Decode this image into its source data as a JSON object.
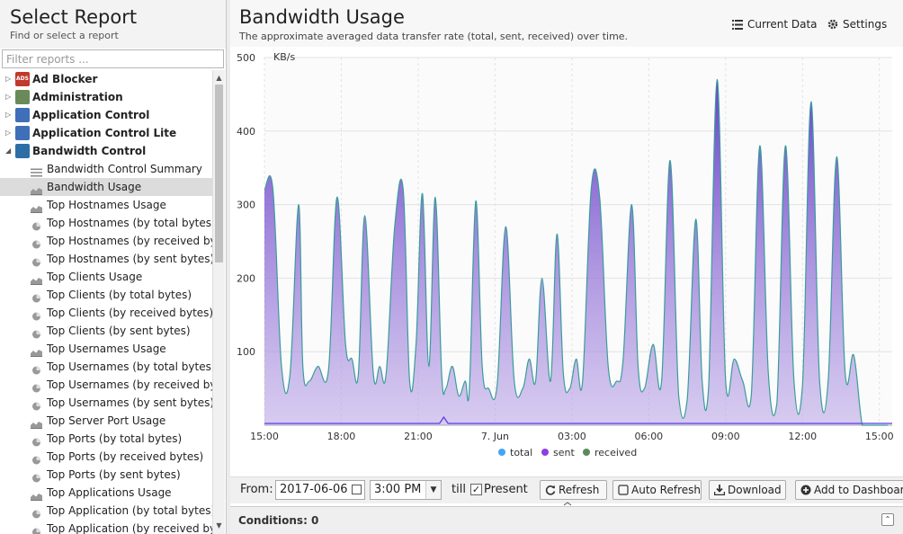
{
  "left_panel": {
    "title": "Select Report",
    "subtitle": "Find or select a report",
    "filter_placeholder": "Filter reports ..."
  },
  "tree": {
    "categories": [
      {
        "label": "Ad Blocker",
        "icon": "ad-blocker-icon",
        "icon_text": "ADS",
        "icon_color": "#c0392b",
        "expanded": false
      },
      {
        "label": "Administration",
        "icon": "administration-icon",
        "icon_text": "",
        "icon_color": "#6a8a5a",
        "expanded": false
      },
      {
        "label": "Application Control",
        "icon": "application-control-icon",
        "icon_text": "",
        "icon_color": "#3f6fb8",
        "expanded": false
      },
      {
        "label": "Application Control Lite",
        "icon": "application-control-lite-icon",
        "icon_text": "",
        "icon_color": "#3f6fb8",
        "expanded": false
      },
      {
        "label": "Bandwidth Control",
        "icon": "bandwidth-control-icon",
        "icon_text": "",
        "icon_color": "#2e6ea6",
        "expanded": true
      }
    ],
    "children": [
      {
        "label": "Bandwidth Control Summary",
        "icon": "text-report-icon"
      },
      {
        "label": "Bandwidth Usage",
        "icon": "area-chart-icon",
        "selected": true
      },
      {
        "label": "Top Hostnames Usage",
        "icon": "area-chart-icon"
      },
      {
        "label": "Top Hostnames (by total bytes)",
        "icon": "pie-chart-icon"
      },
      {
        "label": "Top Hostnames (by received byt...",
        "icon": "pie-chart-icon"
      },
      {
        "label": "Top Hostnames (by sent bytes)",
        "icon": "pie-chart-icon"
      },
      {
        "label": "Top Clients Usage",
        "icon": "area-chart-icon"
      },
      {
        "label": "Top Clients (by total bytes)",
        "icon": "pie-chart-icon"
      },
      {
        "label": "Top Clients (by received bytes)",
        "icon": "pie-chart-icon"
      },
      {
        "label": "Top Clients (by sent bytes)",
        "icon": "pie-chart-icon"
      },
      {
        "label": "Top Usernames Usage",
        "icon": "area-chart-icon"
      },
      {
        "label": "Top Usernames (by total bytes)",
        "icon": "pie-chart-icon"
      },
      {
        "label": "Top Usernames (by received bytes)",
        "icon": "pie-chart-icon"
      },
      {
        "label": "Top Usernames (by sent bytes)",
        "icon": "pie-chart-icon"
      },
      {
        "label": "Top Server Port Usage",
        "icon": "area-chart-icon"
      },
      {
        "label": "Top Ports (by total bytes)",
        "icon": "pie-chart-icon"
      },
      {
        "label": "Top Ports (by received bytes)",
        "icon": "pie-chart-icon"
      },
      {
        "label": "Top Ports (by sent bytes)",
        "icon": "pie-chart-icon"
      },
      {
        "label": "Top Applications Usage",
        "icon": "area-chart-icon"
      },
      {
        "label": "Top Application (by total bytes)",
        "icon": "pie-chart-icon"
      },
      {
        "label": "Top Application (by received bytes)",
        "icon": "pie-chart-icon"
      }
    ]
  },
  "report": {
    "title": "Bandwidth Usage",
    "subtitle": "The approximate averaged data transfer rate (total, sent, received) over time.",
    "current_data_label": "Current Data",
    "settings_label": "Settings"
  },
  "toolbar": {
    "from_label": "From:",
    "from_date": "2017-06-06",
    "from_time": "3:00 PM",
    "till_label": "till",
    "present_checked": true,
    "present_label": "Present",
    "refresh_label": "Refresh",
    "auto_refresh_label": "Auto Refresh",
    "download_label": "Download",
    "add_dashboard_label": "Add to Dashboard"
  },
  "conditions": {
    "label": "Conditions: 0"
  },
  "chart_data": {
    "type": "area",
    "ylabel": "KB/s",
    "ylim": [
      0,
      500
    ],
    "yticks": [
      100,
      200,
      300,
      400,
      500
    ],
    "xlim": [
      "2017-06-06T15:00",
      "2017-06-07T15:30"
    ],
    "xticks": [
      {
        "t": "2017-06-06T15:00",
        "label": "15:00"
      },
      {
        "t": "2017-06-06T18:00",
        "label": "18:00"
      },
      {
        "t": "2017-06-06T21:00",
        "label": "21:00"
      },
      {
        "t": "2017-06-07T00:00",
        "label": "7. Jun"
      },
      {
        "t": "2017-06-07T03:00",
        "label": "03:00"
      },
      {
        "t": "2017-06-07T06:00",
        "label": "06:00"
      },
      {
        "t": "2017-06-07T09:00",
        "label": "09:00"
      },
      {
        "t": "2017-06-07T12:00",
        "label": "12:00"
      },
      {
        "t": "2017-06-07T15:00",
        "label": "15:00"
      }
    ],
    "grid": true,
    "legend_position": "bottom",
    "series": [
      {
        "name": "total",
        "color": "#42a5f5",
        "x": [
          "2017-06-06T15:00",
          "2017-06-06T15:20",
          "2017-06-06T15:40",
          "2017-06-06T16:00",
          "2017-06-06T16:20",
          "2017-06-06T16:30",
          "2017-06-06T16:45",
          "2017-06-06T17:05",
          "2017-06-06T17:30",
          "2017-06-06T17:50",
          "2017-06-06T18:10",
          "2017-06-06T18:25",
          "2017-06-06T18:40",
          "2017-06-06T18:55",
          "2017-06-06T19:15",
          "2017-06-06T19:30",
          "2017-06-06T19:45",
          "2017-06-06T20:05",
          "2017-06-06T20:25",
          "2017-06-06T20:40",
          "2017-06-06T20:55",
          "2017-06-06T21:10",
          "2017-06-06T21:25",
          "2017-06-06T21:40",
          "2017-06-06T21:55",
          "2017-06-06T22:05",
          "2017-06-06T22:20",
          "2017-06-06T22:35",
          "2017-06-06T22:50",
          "2017-06-06T23:00",
          "2017-06-06T23:15",
          "2017-06-06T23:30",
          "2017-06-06T23:45",
          "2017-06-07T00:05",
          "2017-06-07T00:25",
          "2017-06-07T00:45",
          "2017-06-07T01:05",
          "2017-06-07T01:20",
          "2017-06-07T01:35",
          "2017-06-07T01:50",
          "2017-06-07T02:10",
          "2017-06-07T02:25",
          "2017-06-07T02:40",
          "2017-06-07T02:55",
          "2017-06-07T03:10",
          "2017-06-07T03:25",
          "2017-06-07T03:45",
          "2017-06-07T04:05",
          "2017-06-07T04:25",
          "2017-06-07T04:45",
          "2017-06-07T05:00",
          "2017-06-07T05:20",
          "2017-06-07T05:35",
          "2017-06-07T05:50",
          "2017-06-07T06:10",
          "2017-06-07T06:30",
          "2017-06-07T06:50",
          "2017-06-07T07:10",
          "2017-06-07T07:30",
          "2017-06-07T07:50",
          "2017-06-07T08:05",
          "2017-06-07T08:20",
          "2017-06-07T08:40",
          "2017-06-07T09:00",
          "2017-06-07T09:20",
          "2017-06-07T09:40",
          "2017-06-07T10:00",
          "2017-06-07T10:20",
          "2017-06-07T10:40",
          "2017-06-07T11:00",
          "2017-06-07T11:20",
          "2017-06-07T11:40",
          "2017-06-07T12:00",
          "2017-06-07T12:20",
          "2017-06-07T12:40",
          "2017-06-07T13:00",
          "2017-06-07T13:20",
          "2017-06-07T13:40",
          "2017-06-07T14:00",
          "2017-06-07T14:20",
          "2017-06-07T14:40",
          "2017-06-07T15:00",
          "2017-06-07T15:20"
        ],
        "values": [
          320,
          320,
          80,
          70,
          300,
          80,
          60,
          80,
          75,
          310,
          110,
          90,
          70,
          285,
          70,
          80,
          70,
          270,
          320,
          60,
          110,
          315,
          80,
          310,
          70,
          50,
          80,
          40,
          60,
          50,
          305,
          80,
          50,
          55,
          270,
          60,
          50,
          90,
          60,
          200,
          60,
          260,
          70,
          50,
          90,
          60,
          320,
          310,
          80,
          60,
          90,
          300,
          80,
          50,
          110,
          60,
          360,
          40,
          35,
          280,
          60,
          50,
          470,
          60,
          90,
          60,
          40,
          380,
          70,
          30,
          380,
          60,
          55,
          440,
          60,
          60,
          365,
          70,
          95,
          0,
          0,
          0,
          0
        ],
        "note_omit": true
      }
    ],
    "legend": [
      {
        "name": "total",
        "color": "#42a5f5"
      },
      {
        "name": "sent",
        "color": "#8e3fe0"
      },
      {
        "name": "received",
        "color": "#5d8a5d"
      }
    ]
  }
}
